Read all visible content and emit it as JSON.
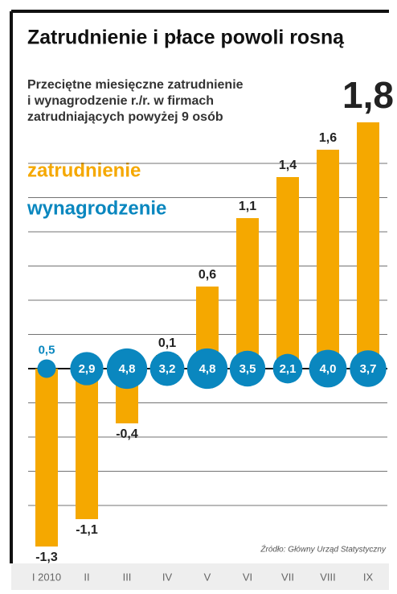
{
  "chart_data": {
    "type": "bar-bubble",
    "title": "Zatrudnienie i płace powoli rosną",
    "subtitle": [
      "Przeciętne miesięczne zatrudnienie",
      "i wynagrodzenie r./r. w firmach",
      "zatrudniających powyżej 9 osób"
    ],
    "source": "Źródło: Główny Urząd Statystyczny",
    "categories": [
      "I 2010",
      "II",
      "III",
      "IV",
      "V",
      "VI",
      "VII",
      "VIII",
      "IX"
    ],
    "series": [
      {
        "name": "zatrudnienie",
        "color": "#f5a800",
        "values": [
          -1.3,
          -1.1,
          -0.4,
          0.1,
          0.6,
          1.1,
          1.4,
          1.6,
          1.8
        ],
        "value_labels": [
          "-1,3",
          "-1,1",
          "-0,4",
          "0,1",
          "0,6",
          "1,1",
          "1,4",
          "1,6",
          "1,8"
        ]
      },
      {
        "name": "wynagrodzenie",
        "color": "#0a87bf",
        "values": [
          0.5,
          2.9,
          4.8,
          3.2,
          4.8,
          3.5,
          2.1,
          4.0,
          3.7
        ],
        "value_labels": [
          "0,5",
          "2,9",
          "4,8",
          "3,2",
          "4,8",
          "3,5",
          "2,1",
          "4,0",
          "3,7"
        ]
      }
    ],
    "yticks": [
      -1,
      -0.75,
      -0.5,
      -0.25,
      0,
      0.25,
      0.5,
      0.75,
      1,
      1.25,
      1.5
    ],
    "grid": true
  }
}
